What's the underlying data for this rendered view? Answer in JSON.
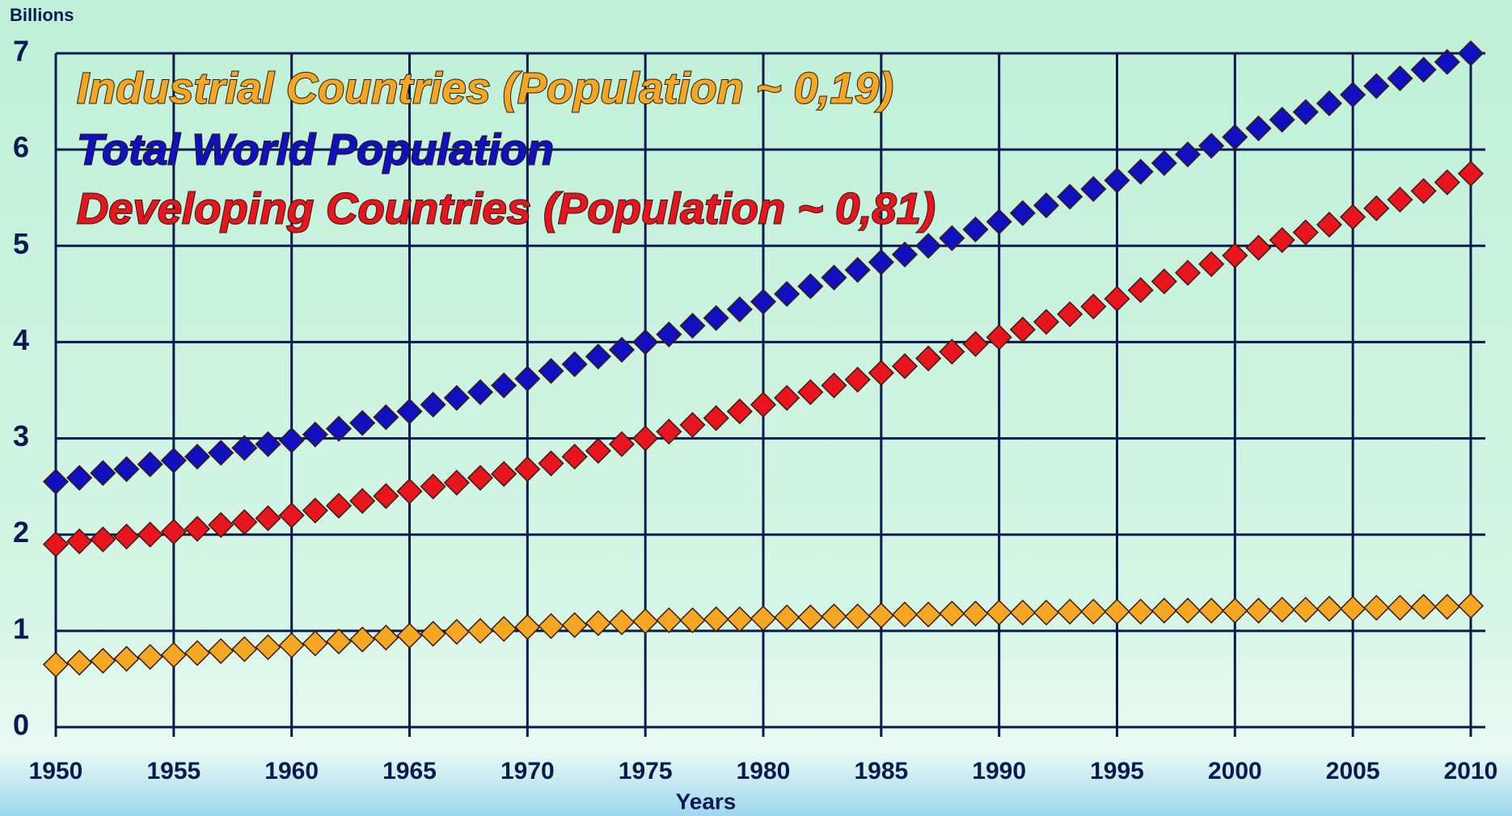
{
  "chart_data": {
    "type": "scatter",
    "y_label": "Billions",
    "x_label": "Years",
    "x": [
      1950,
      1951,
      1952,
      1953,
      1954,
      1955,
      1956,
      1957,
      1958,
      1959,
      1960,
      1961,
      1962,
      1963,
      1964,
      1965,
      1966,
      1967,
      1968,
      1969,
      1970,
      1971,
      1972,
      1973,
      1974,
      1975,
      1976,
      1977,
      1978,
      1979,
      1980,
      1981,
      1982,
      1983,
      1984,
      1985,
      1986,
      1987,
      1988,
      1989,
      1990,
      1991,
      1992,
      1993,
      1994,
      1995,
      1996,
      1997,
      1998,
      1999,
      2000,
      2001,
      2002,
      2003,
      2004,
      2005,
      2006,
      2007,
      2008,
      2009,
      2010
    ],
    "series": [
      {
        "name": "Industrial Countries (Population ~ 0,19)",
        "color": "#f5a623",
        "values": [
          0.65,
          0.67,
          0.69,
          0.71,
          0.73,
          0.75,
          0.77,
          0.79,
          0.81,
          0.83,
          0.85,
          0.87,
          0.89,
          0.91,
          0.93,
          0.95,
          0.97,
          0.99,
          1.0,
          1.02,
          1.04,
          1.05,
          1.06,
          1.08,
          1.09,
          1.1,
          1.11,
          1.11,
          1.12,
          1.12,
          1.13,
          1.14,
          1.14,
          1.15,
          1.15,
          1.16,
          1.17,
          1.17,
          1.18,
          1.18,
          1.19,
          1.19,
          1.19,
          1.2,
          1.2,
          1.2,
          1.2,
          1.21,
          1.21,
          1.21,
          1.21,
          1.21,
          1.22,
          1.22,
          1.23,
          1.23,
          1.24,
          1.24,
          1.25,
          1.25,
          1.26
        ]
      },
      {
        "name": "Total World Population",
        "color": "#1010c0",
        "values": [
          2.55,
          2.59,
          2.64,
          2.68,
          2.73,
          2.77,
          2.81,
          2.85,
          2.9,
          2.94,
          2.98,
          3.04,
          3.1,
          3.16,
          3.22,
          3.28,
          3.35,
          3.42,
          3.48,
          3.55,
          3.62,
          3.7,
          3.77,
          3.85,
          3.92,
          4.0,
          4.08,
          4.17,
          4.25,
          4.34,
          4.42,
          4.5,
          4.58,
          4.67,
          4.75,
          4.83,
          4.91,
          5.0,
          5.08,
          5.17,
          5.25,
          5.34,
          5.42,
          5.51,
          5.59,
          5.68,
          5.77,
          5.86,
          5.95,
          6.04,
          6.13,
          6.22,
          6.31,
          6.39,
          6.48,
          6.57,
          6.66,
          6.74,
          6.83,
          6.91,
          7.0
        ]
      },
      {
        "name": "Developing Countries (Population ~ 0,81)",
        "color": "#e8141e",
        "values": [
          1.9,
          1.93,
          1.95,
          1.98,
          2.0,
          2.03,
          2.06,
          2.1,
          2.13,
          2.17,
          2.2,
          2.25,
          2.3,
          2.35,
          2.4,
          2.45,
          2.5,
          2.54,
          2.59,
          2.63,
          2.68,
          2.74,
          2.81,
          2.87,
          2.94,
          3.0,
          3.07,
          3.14,
          3.21,
          3.28,
          3.35,
          3.42,
          3.48,
          3.55,
          3.61,
          3.68,
          3.75,
          3.83,
          3.9,
          3.98,
          4.05,
          4.13,
          4.21,
          4.29,
          4.37,
          4.45,
          4.54,
          4.63,
          4.72,
          4.81,
          4.9,
          4.98,
          5.06,
          5.14,
          5.22,
          5.3,
          5.39,
          5.48,
          5.57,
          5.66,
          5.75
        ]
      }
    ],
    "xlim": [
      1950,
      2010
    ],
    "xticks": [
      1950,
      1955,
      1960,
      1965,
      1970,
      1975,
      1980,
      1985,
      1990,
      1995,
      2000,
      2005,
      2010
    ],
    "ylim": [
      0,
      7
    ],
    "yticks": [
      0,
      1,
      2,
      3,
      4,
      5,
      6,
      7
    ],
    "grid": true
  }
}
